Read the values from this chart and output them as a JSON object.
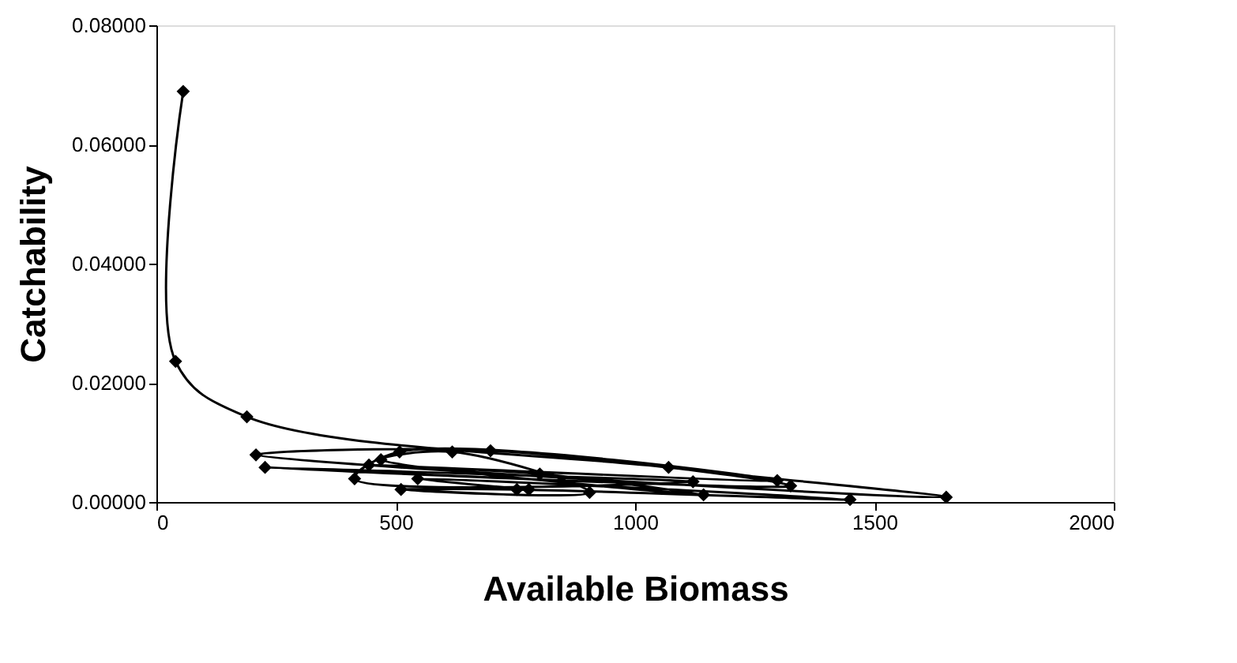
{
  "chart_data": {
    "type": "line",
    "xlabel": "Available Biomass",
    "ylabel": "Catchability",
    "xlim": [
      0,
      2000
    ],
    "xticks": [
      0,
      500,
      1000,
      1500,
      2000
    ],
    "ylim": [
      0,
      0.08
    ],
    "yticks": [
      {
        "value": 0,
        "label": "0.00000"
      },
      {
        "value": 0.02,
        "label": "0.02000"
      },
      {
        "value": 0.04,
        "label": "0.04000"
      },
      {
        "value": 0.06,
        "label": "0.06000"
      },
      {
        "value": 0.08,
        "label": "0.08000"
      }
    ],
    "grid": false,
    "marker": "diamond",
    "line_style": "solid",
    "series": [
      {
        "color": "#000000",
        "x": [
          56,
          40,
          189,
          1070,
          1650,
          208,
          698,
          1325,
          227,
          1121,
          414,
          508,
          1297,
          444,
          801,
          1143,
          469,
          618,
          905,
          511,
          753,
          1449,
          546,
          778
        ],
        "values": [
          0.0689,
          0.0236,
          0.0143,
          0.0058,
          0.0008,
          0.0079,
          0.0086,
          0.0027,
          0.0058,
          0.0034,
          0.0039,
          0.0084,
          0.0036,
          0.0062,
          0.0047,
          0.0012,
          0.0071,
          0.0084,
          0.0016,
          0.0021,
          0.0021,
          0.0004,
          0.0039,
          0.0021
        ]
      }
    ]
  }
}
